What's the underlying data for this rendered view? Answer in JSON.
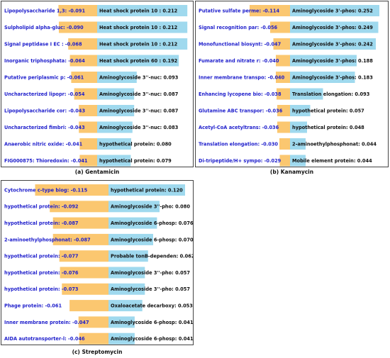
{
  "colors": {
    "negative_bar": "#fbc770",
    "positive_bar": "#9fd9ee",
    "negative_text": "#1f1fcc",
    "positive_text": "#111111"
  },
  "chart_data": [
    {
      "type": "bar",
      "caption": "(a) Gentamicin",
      "negative": [
        {
          "label": "Lipopolysaccharide 1,3:",
          "value": -0.091
        },
        {
          "label": "Sulpholipid alpha-gluc:",
          "value": -0.09
        },
        {
          "label": "Signal peptidase I EC :",
          "value": -0.068
        },
        {
          "label": "Inorganic triphosphata:",
          "value": -0.064
        },
        {
          "label": "Putative periplasmic p:",
          "value": -0.061
        },
        {
          "label": "Uncharacterized lipopr:",
          "value": -0.054
        },
        {
          "label": "Lipopolysaccharide cor:",
          "value": -0.043
        },
        {
          "label": "Uncharacterized fimbri:",
          "value": -0.043
        },
        {
          "label": "Anaerobic nitric oxide:",
          "value": -0.041
        },
        {
          "label": "FIG000875: Thioredoxin:",
          "value": -0.041
        }
      ],
      "positive": [
        {
          "label": "Heat shock protein 10 :",
          "value": 0.212
        },
        {
          "label": "Heat shock protein 10 :",
          "value": 0.212
        },
        {
          "label": "Heat shock protein 10 :",
          "value": 0.212
        },
        {
          "label": "Heat shock protein 60 :",
          "value": 0.192
        },
        {
          "label": "Aminoglycoside 3''-nuc:",
          "value": 0.093
        },
        {
          "label": "Aminoglycoside 3''-nuc:",
          "value": 0.087
        },
        {
          "label": "Aminoglycoside 3''-nuc:",
          "value": 0.087
        },
        {
          "label": "Aminoglycoside 3''-nuc:",
          "value": 0.083
        },
        {
          "label": "hypothetical protein:",
          "value": 0.08
        },
        {
          "label": "hypothetical protein:",
          "value": 0.079
        }
      ]
    },
    {
      "type": "bar",
      "caption": "(b) Kanamycin",
      "negative": [
        {
          "label": "Putative sulfate perme:",
          "value": -0.114
        },
        {
          "label": "Signal recognition par:",
          "value": -0.056
        },
        {
          "label": "Monofunctional biosynt:",
          "value": -0.047
        },
        {
          "label": "Fumarate and nitrate r:",
          "value": -0.04
        },
        {
          "label": "Inner membrane transpo:",
          "value": -0.04
        },
        {
          "label": "Enhancing lycopene bio:",
          "value": -0.038
        },
        {
          "label": "Glutamine ABC transpor:",
          "value": -0.036
        },
        {
          "label": "Acetyl-CoA acetyltrans:",
          "value": -0.036
        },
        {
          "label": "Translation elongation:",
          "value": -0.03
        },
        {
          "label": "Di-tripeptide/H+ sympo:",
          "value": -0.029
        }
      ],
      "positive": [
        {
          "label": "Aminoglycoside 3'-phos:",
          "value": 0.252
        },
        {
          "label": "Aminoglycoside 3'-phos:",
          "value": 0.249
        },
        {
          "label": "Aminoglycoside 3'-phos:",
          "value": 0.242
        },
        {
          "label": "Aminoglycoside 3'-phos:",
          "value": 0.188
        },
        {
          "label": "Aminoglycoside 3'-phos:",
          "value": 0.183
        },
        {
          "label": "Translation elongation:",
          "value": 0.093
        },
        {
          "label": "hypothetical protein:",
          "value": 0.057
        },
        {
          "label": "hypothetical protein:",
          "value": 0.048
        },
        {
          "label": "2-aminoethylphosphonat:",
          "value": 0.044
        },
        {
          "label": "Mobile element protein:",
          "value": 0.044
        }
      ]
    },
    {
      "type": "bar",
      "caption": "(c) Streptomycin",
      "negative": [
        {
          "label": "Cytochrome c-type biog:",
          "value": -0.115
        },
        {
          "label": "hypothetical protein:",
          "value": -0.092
        },
        {
          "label": "hypothetical protein:",
          "value": -0.087
        },
        {
          "label": "2-aminoethylphosphonat:",
          "value": -0.087
        },
        {
          "label": "hypothetical protein:",
          "value": -0.077
        },
        {
          "label": "hypothetical protein:",
          "value": -0.076
        },
        {
          "label": "hypothetical protein:",
          "value": -0.073
        },
        {
          "label": "Phage protein:",
          "value": -0.061
        },
        {
          "label": "Inner membrane protein:",
          "value": -0.047
        },
        {
          "label": "AIDA autotransporter-l:",
          "value": -0.046
        }
      ],
      "positive": [
        {
          "label": "hypothetical protein:",
          "value": 0.12
        },
        {
          "label": "Aminoglycoside 3''-pho:",
          "value": 0.08
        },
        {
          "label": "Aminoglycoside 6-phosp:",
          "value": 0.076
        },
        {
          "label": "Aminoglycoside 6-phosp:",
          "value": 0.07
        },
        {
          "label": "Probable tonB-dependen:",
          "value": 0.062
        },
        {
          "label": "Aminoglycoside 3''-pho:",
          "value": 0.057
        },
        {
          "label": "Aminoglycoside 3''-pho:",
          "value": 0.057
        },
        {
          "label": "Oxaloacetate decarboxy:",
          "value": 0.053
        },
        {
          "label": "Aminoglycoside 6-phosp:",
          "value": 0.041
        },
        {
          "label": "Aminoglycoside 6-phosp:",
          "value": 0.041
        }
      ]
    }
  ]
}
